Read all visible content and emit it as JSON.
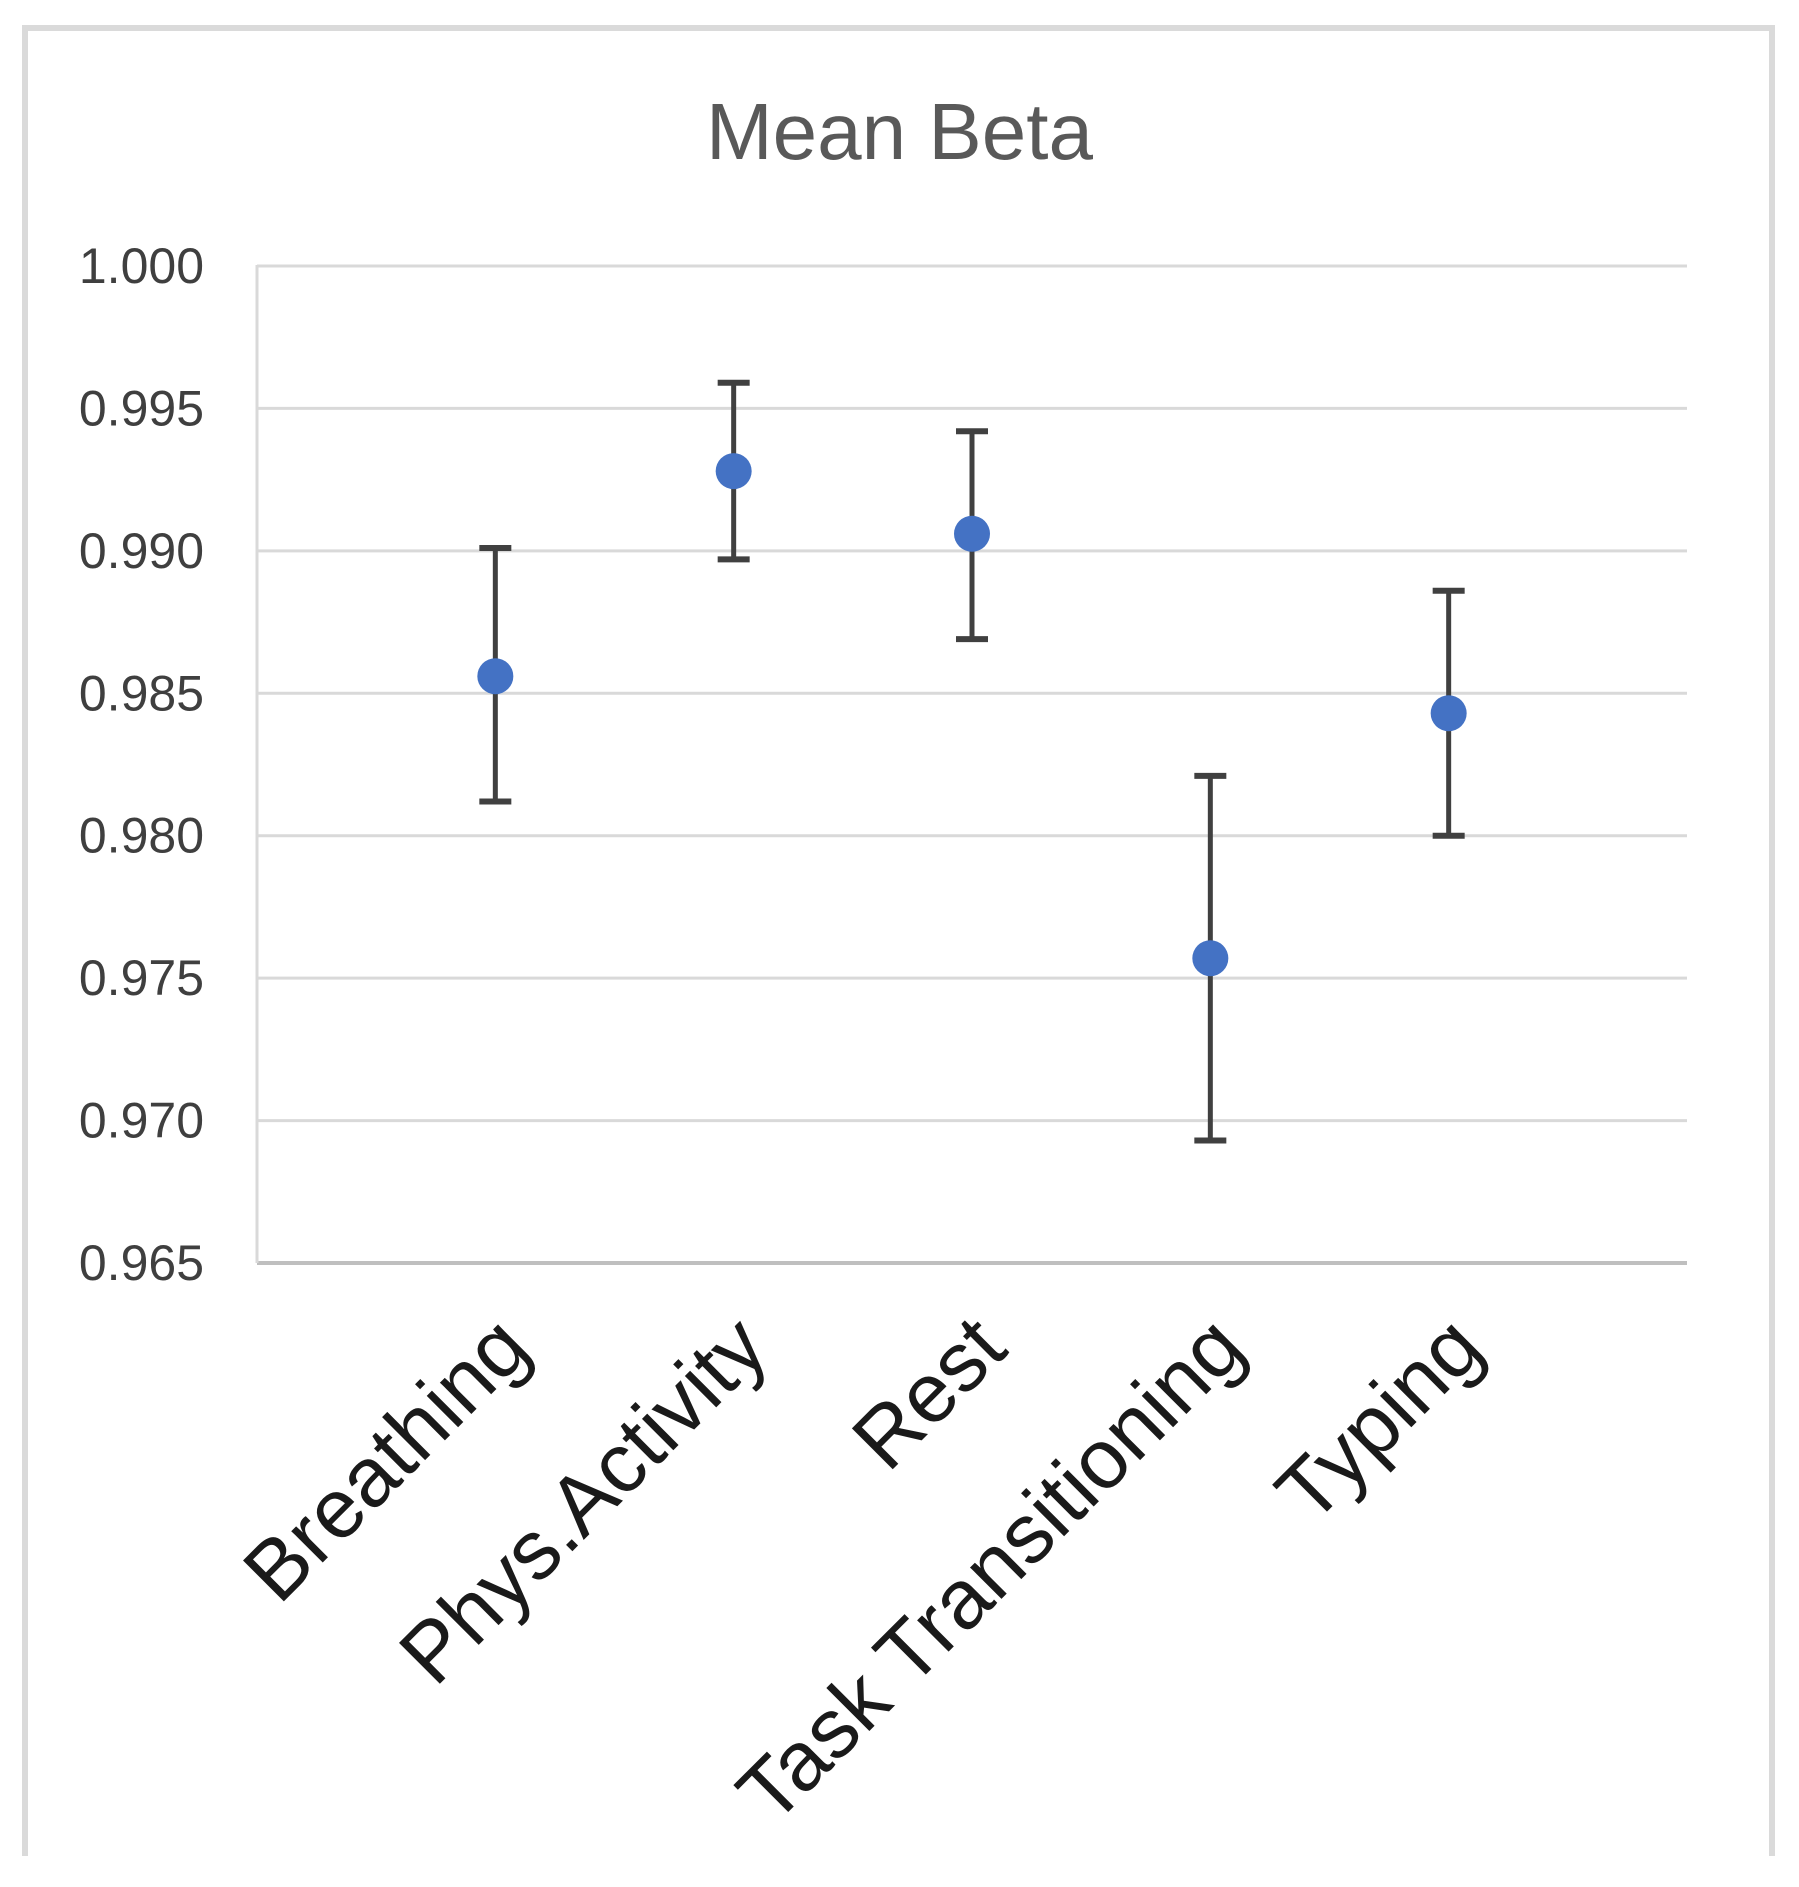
{
  "chart_data": {
    "type": "scatter",
    "title": "Mean Beta",
    "categories": [
      "Breathing",
      "Phys.Activity",
      "Rest",
      "Task Transitioning",
      "Typing"
    ],
    "series": [
      {
        "name": "Mean Beta",
        "values": [
          0.9856,
          0.9928,
          0.9906,
          0.9757,
          0.9843
        ],
        "error_upper": [
          0.9901,
          0.9959,
          0.9942,
          0.9821,
          0.9886
        ],
        "error_lower": [
          0.9812,
          0.9897,
          0.9869,
          0.9693,
          0.98
        ]
      }
    ],
    "xlabel": "",
    "ylabel": "",
    "ylim": [
      0.965,
      1.0
    ],
    "ytick_step": 0.005,
    "ytick_labels": [
      "0.965",
      "0.970",
      "0.975",
      "0.980",
      "0.985",
      "0.990",
      "0.995",
      "1.000"
    ],
    "grid": true,
    "legend": "none",
    "marker_shape": "circle",
    "colors": {
      "marker": "#4472C4",
      "error_bar": "#404040",
      "gridline": "#D9D9D9",
      "axis_line": "#BFBFBF",
      "plot_border": "#D9D9D9",
      "title_text": "#595959",
      "tick_text": "#3F3F3F",
      "category_text": "#1A1A1A",
      "frame": "#DADADA"
    }
  }
}
